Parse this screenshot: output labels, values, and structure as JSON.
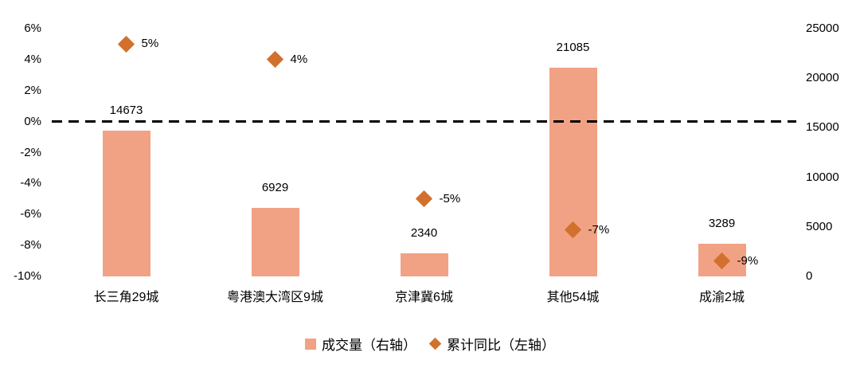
{
  "chart_data": {
    "type": "bar",
    "subtype": "bar-with-point-markers-dual-axis",
    "title": "",
    "categories": [
      "长三角29城",
      "粤港澳大湾区9城",
      "京津冀6城",
      "其他54城",
      "成渝2城"
    ],
    "series": [
      {
        "name": "成交量（右轴）",
        "type": "bar",
        "axis": "right",
        "values": [
          14673,
          6929,
          2340,
          21085,
          3289
        ],
        "labels": [
          "14673",
          "6929",
          "2340",
          "21085",
          "3289"
        ],
        "color": "#F2A284"
      },
      {
        "name": "累计同比（左轴）",
        "type": "point",
        "axis": "left",
        "values": [
          5,
          4,
          -5,
          -7,
          -9
        ],
        "labels": [
          "5%",
          "4%",
          "-5%",
          "-7%",
          "-9%"
        ],
        "color": "#D1712D"
      }
    ],
    "left_axis": {
      "min": -10,
      "max": 6,
      "ticks": [
        6,
        4,
        2,
        0,
        -2,
        -4,
        -6,
        -8,
        -10
      ],
      "suffix": "%"
    },
    "right_axis": {
      "min": 0,
      "max": 25000,
      "ticks": [
        25000,
        20000,
        15000,
        10000,
        5000,
        0
      ]
    },
    "zero_line": {
      "value": 0,
      "style": "dashed",
      "color": "#000000"
    },
    "grid": "off",
    "legend_position": "bottom-center"
  },
  "legend": {
    "items": [
      {
        "label": "成交量（右轴）",
        "marker": "square",
        "color": "#F2A284"
      },
      {
        "label": "累计同比（左轴）",
        "marker": "diamond",
        "color": "#D1712D"
      }
    ]
  }
}
